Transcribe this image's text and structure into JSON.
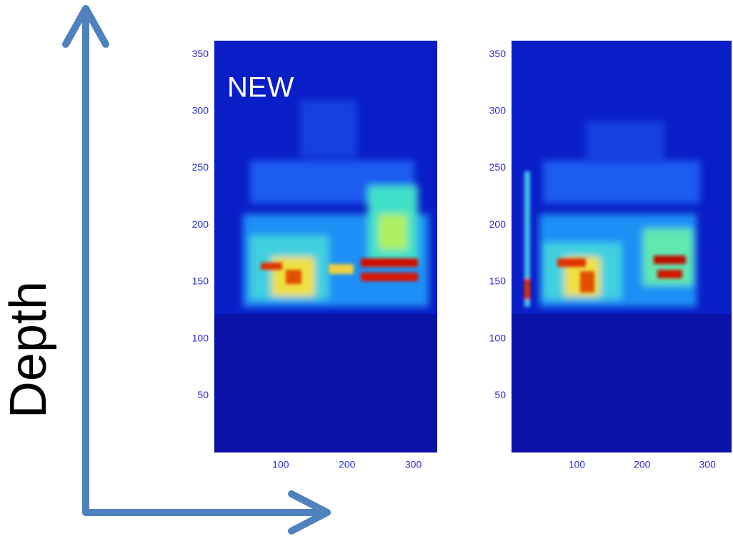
{
  "ylabel": "Depth",
  "chart_data": [
    {
      "type": "heatmap",
      "annotation": "NEW",
      "xlim": [
        0,
        336
      ],
      "ylim": [
        0,
        362
      ],
      "xticks": [
        100,
        200,
        300
      ],
      "yticks": [
        50,
        100,
        150,
        200,
        250,
        300,
        350
      ]
    },
    {
      "type": "heatmap",
      "xlim": [
        0,
        337
      ],
      "ylim": [
        0,
        362
      ],
      "xticks": [
        100,
        200,
        300
      ],
      "yticks": [
        50,
        100,
        150,
        200,
        250,
        300,
        350
      ]
    }
  ]
}
